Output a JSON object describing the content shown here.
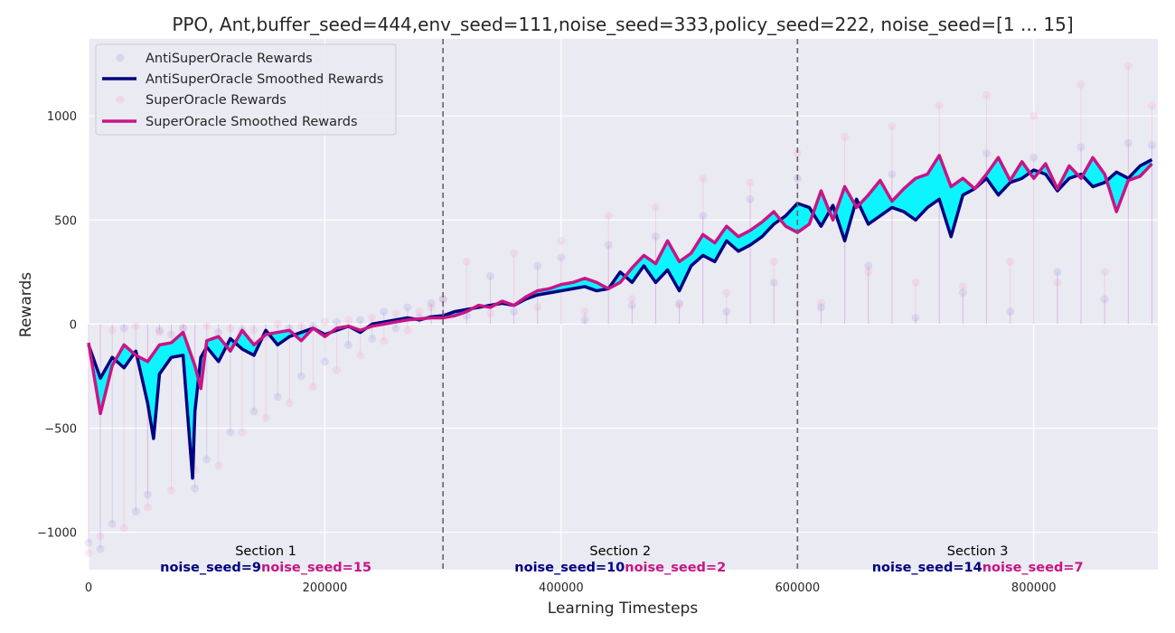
{
  "chart_data": {
    "type": "line",
    "title": "PPO, Ant,buffer_seed=444,env_seed=111,noise_seed=333,policy_seed=222, noise_seed=[1 ... 15]",
    "xlabel": "Learning Timesteps",
    "ylabel": "Rewards",
    "xlim": [
      0,
      905000
    ],
    "ylim": [
      -1180,
      1370
    ],
    "xticks": [
      0,
      200000,
      400000,
      600000,
      800000
    ],
    "xtick_labels": [
      "0",
      "200000",
      "400000",
      "600000",
      "800000"
    ],
    "yticks": [
      -1000,
      -500,
      0,
      500,
      1000
    ],
    "ytick_labels": [
      "−1000",
      "−500",
      "0",
      "500",
      "1000"
    ],
    "grid": true,
    "legend_position": "top-left",
    "legend": [
      {
        "label": "AntiSuperOracle Rewards",
        "style": "marker"
      },
      {
        "label": "AntiSuperOracle Smoothed Rewards",
        "style": "line"
      },
      {
        "label": "SuperOracle Rewards",
        "style": "marker"
      },
      {
        "label": "SuperOracle Smoothed Rewards",
        "style": "line"
      }
    ],
    "section_boundaries": [
      300000,
      600000
    ],
    "sections": [
      {
        "label": "Section 1",
        "anti_seed": "noise_seed=9",
        "super_seed": "noise_seed=15"
      },
      {
        "label": "Section 2",
        "anti_seed": "noise_seed=10",
        "super_seed": "noise_seed=2"
      },
      {
        "label": "Section 3",
        "anti_seed": "noise_seed=14",
        "super_seed": "noise_seed=7"
      }
    ],
    "series": [
      {
        "name": "AntiSuperOracle Smoothed Rewards",
        "color": "#000080",
        "x": [
          0,
          10000,
          20000,
          30000,
          40000,
          50000,
          55000,
          60000,
          70000,
          80000,
          88000,
          90000,
          95000,
          100000,
          110000,
          120000,
          130000,
          140000,
          150000,
          160000,
          170000,
          180000,
          190000,
          200000,
          210000,
          220000,
          230000,
          240000,
          250000,
          260000,
          270000,
          280000,
          290000,
          300000,
          310000,
          320000,
          330000,
          340000,
          350000,
          360000,
          370000,
          380000,
          390000,
          400000,
          410000,
          420000,
          430000,
          440000,
          450000,
          460000,
          470000,
          480000,
          490000,
          500000,
          510000,
          520000,
          530000,
          540000,
          550000,
          560000,
          570000,
          580000,
          590000,
          600000,
          610000,
          620000,
          630000,
          640000,
          650000,
          660000,
          670000,
          680000,
          690000,
          700000,
          710000,
          720000,
          730000,
          740000,
          750000,
          760000,
          770000,
          780000,
          790000,
          800000,
          810000,
          820000,
          830000,
          840000,
          850000,
          860000,
          870000,
          880000,
          890000,
          900000
        ],
        "values": [
          -100,
          -260,
          -160,
          -210,
          -130,
          -380,
          -550,
          -240,
          -160,
          -150,
          -740,
          -420,
          -160,
          -110,
          -180,
          -70,
          -120,
          -150,
          -30,
          -100,
          -60,
          -40,
          -20,
          -50,
          -30,
          -10,
          -40,
          0,
          10,
          20,
          30,
          20,
          35,
          40,
          60,
          70,
          80,
          90,
          100,
          90,
          120,
          140,
          150,
          160,
          170,
          180,
          160,
          170,
          250,
          200,
          280,
          200,
          260,
          160,
          280,
          330,
          300,
          400,
          350,
          380,
          420,
          480,
          520,
          580,
          560,
          470,
          570,
          400,
          600,
          480,
          520,
          560,
          540,
          500,
          560,
          600,
          420,
          620,
          650,
          700,
          620,
          680,
          700,
          740,
          720,
          640,
          700,
          720,
          660,
          680,
          730,
          700,
          760,
          790
        ]
      },
      {
        "name": "SuperOracle Smoothed Rewards",
        "color": "#c71585",
        "x": [
          0,
          10000,
          20000,
          30000,
          40000,
          50000,
          60000,
          70000,
          80000,
          90000,
          95000,
          100000,
          110000,
          120000,
          130000,
          140000,
          150000,
          160000,
          170000,
          180000,
          190000,
          200000,
          210000,
          220000,
          230000,
          240000,
          250000,
          260000,
          270000,
          280000,
          290000,
          300000,
          310000,
          320000,
          330000,
          340000,
          350000,
          360000,
          370000,
          380000,
          390000,
          400000,
          410000,
          420000,
          430000,
          440000,
          450000,
          460000,
          470000,
          480000,
          490000,
          500000,
          510000,
          520000,
          530000,
          540000,
          550000,
          560000,
          570000,
          580000,
          590000,
          600000,
          610000,
          620000,
          630000,
          640000,
          650000,
          660000,
          670000,
          680000,
          690000,
          700000,
          710000,
          720000,
          730000,
          740000,
          750000,
          760000,
          770000,
          780000,
          790000,
          800000,
          810000,
          820000,
          830000,
          840000,
          850000,
          860000,
          870000,
          880000,
          890000,
          900000
        ],
        "values": [
          -90,
          -430,
          -200,
          -100,
          -150,
          -180,
          -100,
          -90,
          -40,
          -200,
          -310,
          -80,
          -60,
          -130,
          -30,
          -100,
          -50,
          -40,
          -30,
          -80,
          -20,
          -60,
          -20,
          -10,
          -30,
          -10,
          0,
          10,
          20,
          25,
          30,
          30,
          40,
          60,
          90,
          80,
          110,
          90,
          130,
          160,
          170,
          190,
          200,
          220,
          200,
          170,
          200,
          270,
          330,
          290,
          400,
          300,
          340,
          430,
          390,
          470,
          420,
          450,
          490,
          540,
          470,
          440,
          480,
          640,
          500,
          660,
          560,
          620,
          690,
          590,
          650,
          700,
          720,
          810,
          660,
          700,
          650,
          720,
          800,
          690,
          780,
          700,
          770,
          650,
          760,
          700,
          800,
          720,
          540,
          690,
          710,
          770
        ]
      },
      {
        "name": "AntiSuperOracle Rewards",
        "color": "#6a5acd",
        "x": [
          0,
          10000,
          20000,
          30000,
          40000,
          50000,
          60000,
          70000,
          80000,
          90000,
          100000,
          110000,
          120000,
          130000,
          140000,
          150000,
          160000,
          170000,
          180000,
          190000,
          200000,
          210000,
          220000,
          230000,
          240000,
          250000,
          260000,
          270000,
          280000,
          290000,
          300000,
          320000,
          340000,
          360000,
          380000,
          400000,
          420000,
          440000,
          460000,
          480000,
          500000,
          520000,
          540000,
          560000,
          580000,
          600000,
          620000,
          640000,
          660000,
          680000,
          700000,
          720000,
          740000,
          760000,
          780000,
          800000,
          820000,
          840000,
          860000,
          880000,
          900000
        ],
        "values": [
          -1050,
          -1080,
          -960,
          -20,
          -900,
          -820,
          -30,
          -50,
          -20,
          -790,
          -650,
          -40,
          -520,
          -30,
          -420,
          -60,
          -350,
          -20,
          -250,
          -10,
          -180,
          10,
          -100,
          20,
          -70,
          60,
          -20,
          80,
          30,
          100,
          120,
          40,
          230,
          60,
          280,
          320,
          20,
          380,
          90,
          420,
          100,
          520,
          60,
          600,
          200,
          700,
          80,
          640,
          280,
          720,
          30,
          760,
          150,
          820,
          60,
          800,
          250,
          850,
          120,
          870,
          860
        ]
      },
      {
        "name": "SuperOracle Rewards",
        "color": "#ff69b4",
        "x": [
          0,
          10000,
          20000,
          30000,
          40000,
          50000,
          60000,
          70000,
          80000,
          90000,
          100000,
          110000,
          120000,
          130000,
          140000,
          150000,
          160000,
          170000,
          180000,
          190000,
          200000,
          210000,
          220000,
          230000,
          240000,
          250000,
          260000,
          270000,
          280000,
          290000,
          300000,
          320000,
          340000,
          360000,
          380000,
          400000,
          420000,
          440000,
          460000,
          480000,
          500000,
          520000,
          540000,
          560000,
          580000,
          600000,
          620000,
          640000,
          660000,
          680000,
          700000,
          720000,
          740000,
          760000,
          780000,
          800000,
          820000,
          840000,
          860000,
          880000,
          900000
        ],
        "values": [
          -1100,
          -1020,
          -30,
          -980,
          -10,
          -880,
          -40,
          -800,
          -20,
          -700,
          -10,
          -680,
          -20,
          -520,
          -30,
          -450,
          0,
          -380,
          -10,
          -300,
          10,
          -220,
          20,
          -150,
          30,
          -80,
          50,
          -30,
          60,
          80,
          120,
          300,
          50,
          340,
          80,
          400,
          60,
          520,
          120,
          560,
          90,
          700,
          150,
          680,
          300,
          820,
          100,
          900,
          250,
          950,
          200,
          1050,
          180,
          1100,
          300,
          1000,
          200,
          1150,
          250,
          1240,
          1050
        ]
      }
    ]
  }
}
